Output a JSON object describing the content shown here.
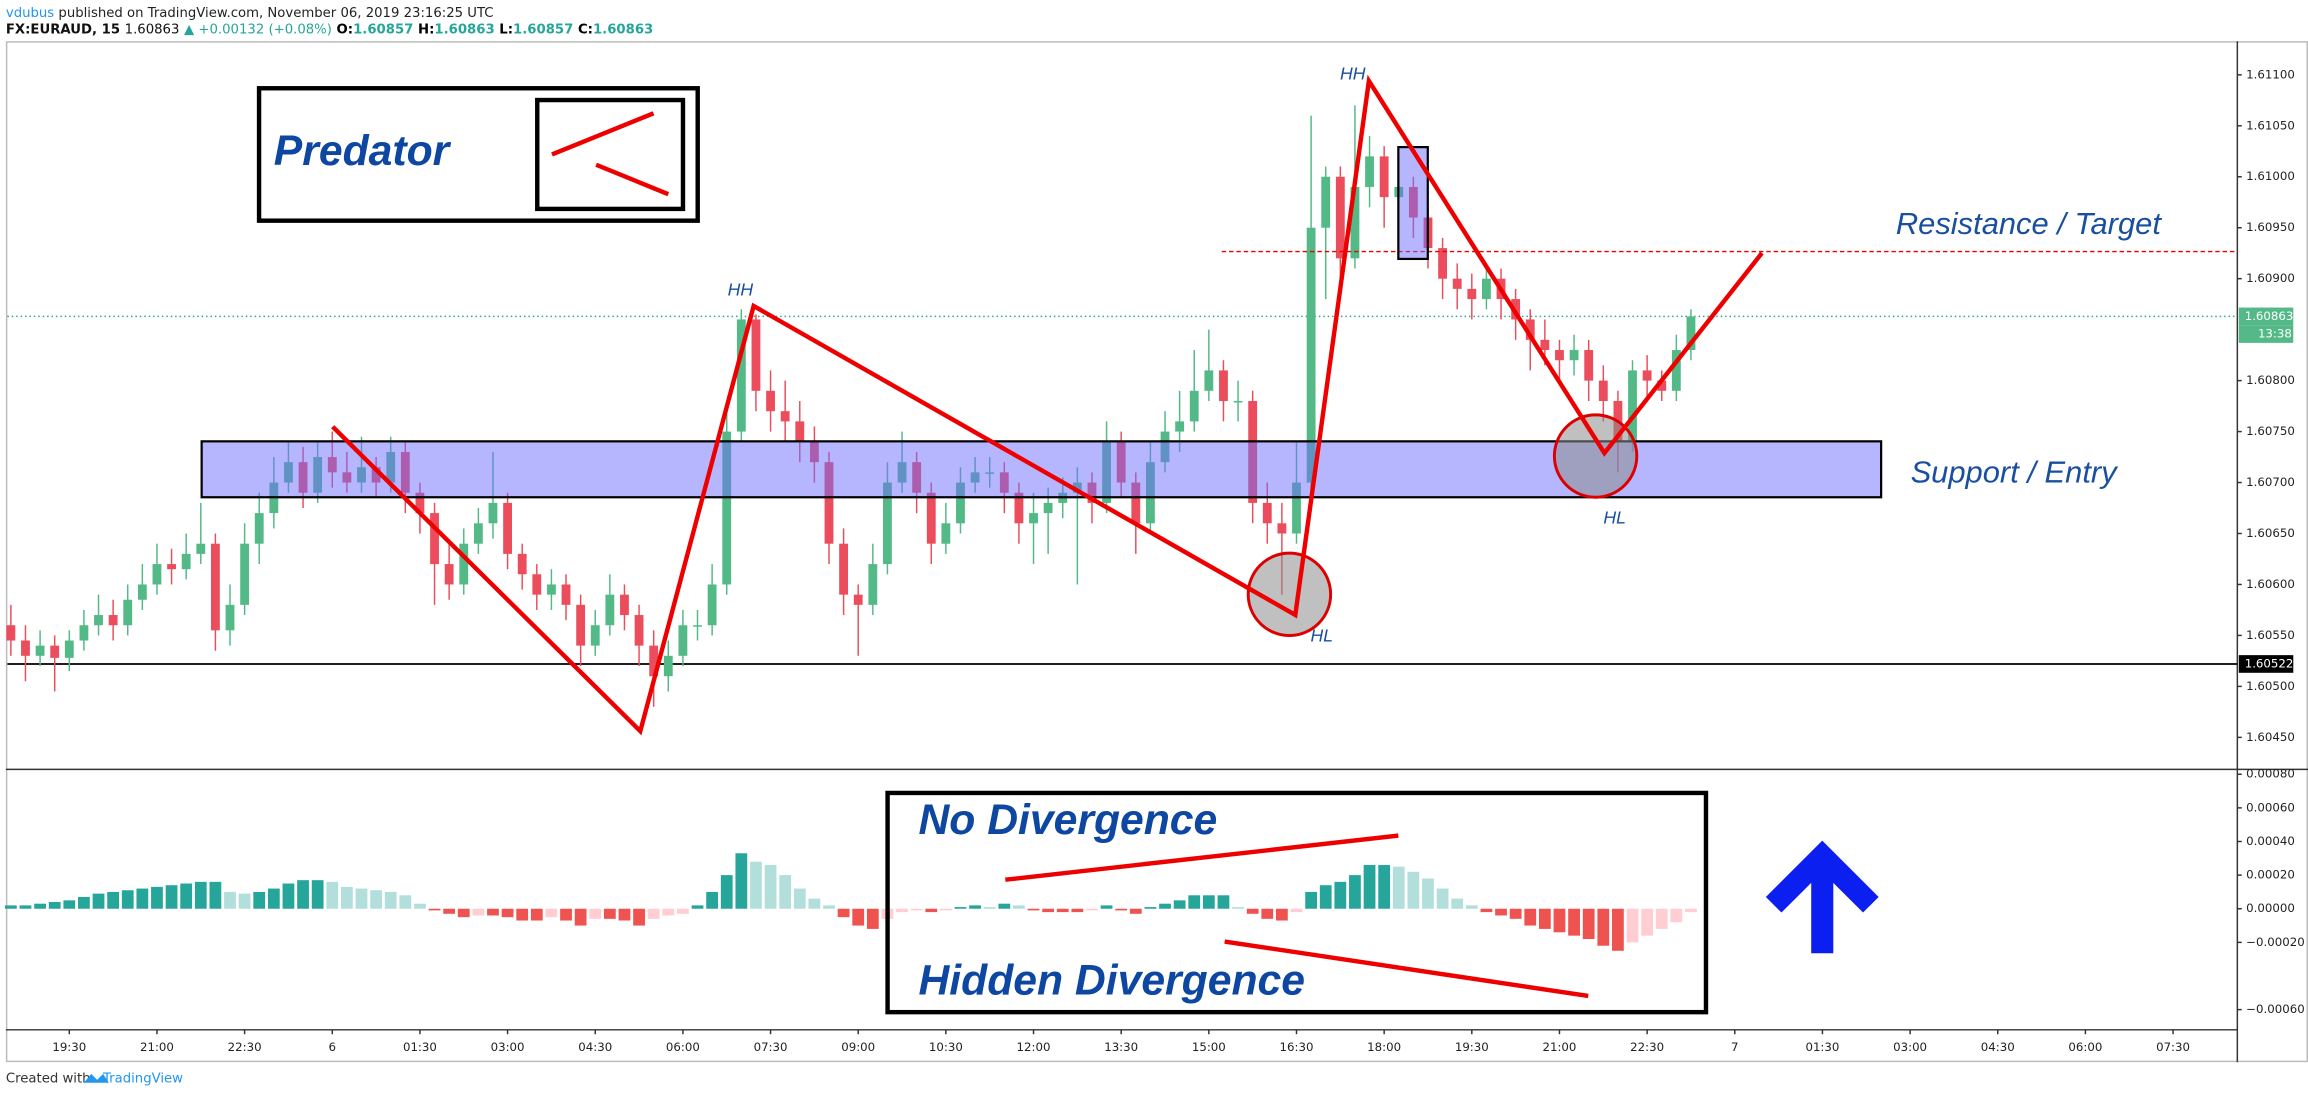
{
  "header": {
    "author": "vdubus",
    "published": "published on TradingView.com, November 06, 2019 23:16:25 UTC",
    "symbol": "FX:EURAUD, 15",
    "price": "1.60863",
    "change": "▲ +0.00132 (+0.08%)",
    "ohlc": [
      {
        "label": "O:",
        "value": "1.60857"
      },
      {
        "label": "H:",
        "value": "1.60863"
      },
      {
        "label": "L:",
        "value": "1.60857"
      },
      {
        "label": "C:",
        "value": "1.60863"
      }
    ]
  },
  "footer": {
    "created": "Created with",
    "brand": "TradingView"
  },
  "chart_data": [
    {
      "type": "candlestick",
      "up_color": "#53b987",
      "down_color": "#eb4d5c",
      "xlim": [
        -0.24,
        152.4
      ],
      "ylim": [
        1.6042,
        1.61133
      ],
      "xticks": [
        {
          "value": 4,
          "label": "19:30"
        },
        {
          "value": 10,
          "label": "21:00"
        },
        {
          "value": 16,
          "label": "22:30"
        },
        {
          "value": 22,
          "label": "6"
        },
        {
          "value": 28,
          "label": "01:30"
        },
        {
          "value": 34,
          "label": "03:00"
        },
        {
          "value": 40,
          "label": "04:30"
        },
        {
          "value": 46,
          "label": "06:00"
        },
        {
          "value": 52,
          "label": "07:30"
        },
        {
          "value": 58,
          "label": "09:00"
        },
        {
          "value": 64,
          "label": "10:30"
        },
        {
          "value": 70,
          "label": "12:00"
        },
        {
          "value": 76,
          "label": "13:30"
        },
        {
          "value": 82,
          "label": "15:00"
        },
        {
          "value": 88,
          "label": "16:30"
        },
        {
          "value": 94,
          "label": "18:00"
        },
        {
          "value": 100,
          "label": "19:30"
        },
        {
          "value": 106,
          "label": "21:00"
        },
        {
          "value": 112,
          "label": "22:30"
        },
        {
          "value": 118,
          "label": "7"
        },
        {
          "value": 124,
          "label": "01:30"
        },
        {
          "value": 130,
          "label": "03:00"
        },
        {
          "value": 136,
          "label": "04:30"
        },
        {
          "value": 142,
          "label": "06:00"
        },
        {
          "value": 148,
          "label": "07:30"
        }
      ],
      "yticks": [
        {
          "value": 1.611,
          "label": "1.61100"
        },
        {
          "value": 1.6105,
          "label": "1.61050"
        },
        {
          "value": 1.61,
          "label": "1.61000"
        },
        {
          "value": 1.6095,
          "label": "1.60950"
        },
        {
          "value": 1.609,
          "label": "1.60900"
        },
        {
          "value": 1.608,
          "label": "1.60800"
        },
        {
          "value": 1.6075,
          "label": "1.60750"
        },
        {
          "value": 1.607,
          "label": "1.60700"
        },
        {
          "value": 1.6065,
          "label": "1.60650"
        },
        {
          "value": 1.606,
          "label": "1.60600"
        },
        {
          "value": 1.6055,
          "label": "1.60550"
        },
        {
          "value": 1.605,
          "label": "1.60500"
        },
        {
          "value": 1.6045,
          "label": "1.60450"
        }
      ],
      "grid": false,
      "last_price": 1.60863,
      "countdown": "13:38",
      "level": 1.60522,
      "annotations": {
        "predator": "Predator",
        "hh": [
          "HH",
          "HH"
        ],
        "hl": [
          "HL",
          "HL"
        ],
        "resistance": "Resistance / Target",
        "support": "Support / Entry"
      },
      "candles": [
        [
          1.6056,
          1.6058,
          1.6053,
          1.60545
        ],
        [
          1.60545,
          1.6056,
          1.60505,
          1.6053
        ],
        [
          1.6053,
          1.60555,
          1.6052,
          1.6054
        ],
        [
          1.6054,
          1.6055,
          1.60495,
          1.60528
        ],
        [
          1.60528,
          1.60555,
          1.60515,
          1.60545
        ],
        [
          1.60545,
          1.60575,
          1.60535,
          1.6056
        ],
        [
          1.6056,
          1.6059,
          1.6055,
          1.6057
        ],
        [
          1.6057,
          1.60585,
          1.60545,
          1.6056
        ],
        [
          1.6056,
          1.606,
          1.6055,
          1.60585
        ],
        [
          1.60585,
          1.6062,
          1.60575,
          1.606
        ],
        [
          1.606,
          1.6064,
          1.6059,
          1.6062
        ],
        [
          1.6062,
          1.60635,
          1.606,
          1.60615
        ],
        [
          1.60615,
          1.6065,
          1.60605,
          1.6063
        ],
        [
          1.6063,
          1.6068,
          1.6062,
          1.6064
        ],
        [
          1.6064,
          1.6065,
          1.60535,
          1.60555
        ],
        [
          1.60555,
          1.606,
          1.6054,
          1.6058
        ],
        [
          1.6058,
          1.6066,
          1.6057,
          1.6064
        ],
        [
          1.6064,
          1.6069,
          1.6062,
          1.6067
        ],
        [
          1.6067,
          1.60725,
          1.60655,
          1.607
        ],
        [
          1.607,
          1.6074,
          1.6069,
          1.6072
        ],
        [
          1.6072,
          1.60735,
          1.60675,
          1.6069
        ],
        [
          1.6069,
          1.6074,
          1.6068,
          1.60725
        ],
        [
          1.60725,
          1.6075,
          1.60695,
          1.6071
        ],
        [
          1.6071,
          1.6073,
          1.6069,
          1.607
        ],
        [
          1.607,
          1.60745,
          1.6069,
          1.60715
        ],
        [
          1.60715,
          1.60725,
          1.60685,
          1.607
        ],
        [
          1.607,
          1.60745,
          1.6069,
          1.6073
        ],
        [
          1.6073,
          1.6074,
          1.6067,
          1.6069
        ],
        [
          1.6069,
          1.607,
          1.6065,
          1.6067
        ],
        [
          1.6067,
          1.6068,
          1.6058,
          1.6062
        ],
        [
          1.6062,
          1.6064,
          1.60585,
          1.606
        ],
        [
          1.606,
          1.60655,
          1.6059,
          1.6064
        ],
        [
          1.6064,
          1.60675,
          1.6063,
          1.6066
        ],
        [
          1.6066,
          1.6073,
          1.60645,
          1.6068
        ],
        [
          1.6068,
          1.6069,
          1.60615,
          1.6063
        ],
        [
          1.6063,
          1.6064,
          1.60595,
          1.6061
        ],
        [
          1.6061,
          1.6062,
          1.60575,
          1.6059
        ],
        [
          1.6059,
          1.60615,
          1.60575,
          1.606
        ],
        [
          1.606,
          1.6061,
          1.60565,
          1.6058
        ],
        [
          1.6058,
          1.6059,
          1.6052,
          1.6054
        ],
        [
          1.6054,
          1.60575,
          1.6053,
          1.6056
        ],
        [
          1.6056,
          1.6061,
          1.6055,
          1.6059
        ],
        [
          1.6059,
          1.606,
          1.60555,
          1.6057
        ],
        [
          1.6057,
          1.6058,
          1.6052,
          1.6054
        ],
        [
          1.6054,
          1.60555,
          1.6048,
          1.6051
        ],
        [
          1.6051,
          1.60545,
          1.60495,
          1.6053
        ],
        [
          1.6053,
          1.60575,
          1.6052,
          1.6056
        ],
        [
          1.6056,
          1.60575,
          1.60545,
          1.6056
        ],
        [
          1.6056,
          1.6062,
          1.6055,
          1.606
        ],
        [
          1.606,
          1.6077,
          1.6059,
          1.6075
        ],
        [
          1.6075,
          1.6087,
          1.6074,
          1.6086
        ],
        [
          1.6086,
          1.60865,
          1.6077,
          1.6079
        ],
        [
          1.6079,
          1.6081,
          1.6075,
          1.6077
        ],
        [
          1.6077,
          1.608,
          1.6074,
          1.6076
        ],
        [
          1.6076,
          1.6078,
          1.6072,
          1.6074
        ],
        [
          1.6074,
          1.60755,
          1.607,
          1.6072
        ],
        [
          1.6072,
          1.6073,
          1.6062,
          1.6064
        ],
        [
          1.6064,
          1.60655,
          1.6057,
          1.6059
        ],
        [
          1.6059,
          1.606,
          1.6053,
          1.6058
        ],
        [
          1.6058,
          1.6064,
          1.6057,
          1.6062
        ],
        [
          1.6062,
          1.6072,
          1.6061,
          1.607
        ],
        [
          1.607,
          1.6075,
          1.6069,
          1.6072
        ],
        [
          1.6072,
          1.6073,
          1.6067,
          1.6069
        ],
        [
          1.6069,
          1.607,
          1.6062,
          1.6064
        ],
        [
          1.6064,
          1.6068,
          1.6063,
          1.6066
        ],
        [
          1.6066,
          1.60715,
          1.6065,
          1.607
        ],
        [
          1.607,
          1.60725,
          1.6069,
          1.6071
        ],
        [
          1.6071,
          1.60725,
          1.60695,
          1.6071
        ],
        [
          1.6071,
          1.6072,
          1.6067,
          1.6069
        ],
        [
          1.6069,
          1.607,
          1.6064,
          1.6066
        ],
        [
          1.6066,
          1.6069,
          1.6062,
          1.6067
        ],
        [
          1.6067,
          1.60695,
          1.6063,
          1.6068
        ],
        [
          1.6068,
          1.60705,
          1.60665,
          1.6069
        ],
        [
          1.6069,
          1.60715,
          1.606,
          1.607
        ],
        [
          1.607,
          1.6071,
          1.6066,
          1.6068
        ],
        [
          1.6068,
          1.6076,
          1.6067,
          1.6074
        ],
        [
          1.6074,
          1.6075,
          1.60685,
          1.607
        ],
        [
          1.607,
          1.6071,
          1.6063,
          1.6066
        ],
        [
          1.6066,
          1.6074,
          1.6065,
          1.6072
        ],
        [
          1.6072,
          1.6077,
          1.6071,
          1.6075
        ],
        [
          1.6075,
          1.6079,
          1.6073,
          1.6076
        ],
        [
          1.6076,
          1.6083,
          1.6075,
          1.6079
        ],
        [
          1.6079,
          1.6085,
          1.6078,
          1.6081
        ],
        [
          1.6081,
          1.6082,
          1.6076,
          1.6078
        ],
        [
          1.6078,
          1.608,
          1.6076,
          1.6078
        ],
        [
          1.6078,
          1.6079,
          1.6066,
          1.6068
        ],
        [
          1.6068,
          1.607,
          1.6064,
          1.6066
        ],
        [
          1.6066,
          1.6068,
          1.6059,
          1.6065
        ],
        [
          1.6065,
          1.6074,
          1.6064,
          1.607
        ],
        [
          1.607,
          1.6106,
          1.6069,
          1.6095
        ],
        [
          1.6095,
          1.6101,
          1.6088,
          1.61
        ],
        [
          1.61,
          1.6101,
          1.609,
          1.6092
        ],
        [
          1.6092,
          1.6107,
          1.6091,
          1.6099
        ],
        [
          1.6099,
          1.6104,
          1.6097,
          1.6102
        ],
        [
          1.6102,
          1.6103,
          1.6095,
          1.6098
        ],
        [
          1.6098,
          1.6103,
          1.6097,
          1.6099
        ],
        [
          1.6099,
          1.61,
          1.6094,
          1.6096
        ],
        [
          1.6096,
          1.6097,
          1.6091,
          1.6093
        ],
        [
          1.6093,
          1.6094,
          1.6088,
          1.609
        ],
        [
          1.609,
          1.60915,
          1.6087,
          1.6089
        ],
        [
          1.6089,
          1.60905,
          1.6086,
          1.6088
        ],
        [
          1.6088,
          1.60915,
          1.6087,
          1.609
        ],
        [
          1.609,
          1.6091,
          1.6086,
          1.6088
        ],
        [
          1.6088,
          1.6089,
          1.6084,
          1.6086
        ],
        [
          1.6086,
          1.6087,
          1.6081,
          1.6084
        ],
        [
          1.6084,
          1.6086,
          1.60815,
          1.6083
        ],
        [
          1.6083,
          1.6084,
          1.608,
          1.6082
        ],
        [
          1.6082,
          1.60845,
          1.60805,
          1.6083
        ],
        [
          1.6083,
          1.6084,
          1.6078,
          1.608
        ],
        [
          1.608,
          1.60815,
          1.6076,
          1.6078
        ],
        [
          1.6078,
          1.6079,
          1.6071,
          1.6074
        ],
        [
          1.6074,
          1.6082,
          1.6073,
          1.6081
        ],
        [
          1.6081,
          1.60825,
          1.60785,
          1.608
        ],
        [
          1.608,
          1.6081,
          1.6078,
          1.6079
        ],
        [
          1.6079,
          1.60845,
          1.6078,
          1.6083
        ],
        [
          1.6083,
          1.6087,
          1.6082,
          1.60863
        ]
      ]
    },
    {
      "type": "bar",
      "ylim": [
        -0.00072,
        0.00082
      ],
      "yticks": [
        {
          "value": 0.0008,
          "label": "0.00080"
        },
        {
          "value": 0.0006,
          "label": "0.00060"
        },
        {
          "value": 0.0004,
          "label": "0.00040"
        },
        {
          "value": 0.0002,
          "label": "0.00020"
        },
        {
          "value": 0,
          "label": "0.00000"
        },
        {
          "value": -0.0002,
          "label": "−0.00020"
        },
        {
          "value": -0.0006,
          "label": "−0.00060"
        }
      ],
      "colors": {
        "positive_rising": "#26a69a",
        "positive_falling": "#b2dfdb",
        "negative_falling": "#ef5350",
        "negative_rising": "#ffcdd2"
      },
      "annotations": {
        "no_div": "No Divergence",
        "hidden_div": "Hidden Divergence"
      },
      "values": [
        2e-05,
        2e-05,
        3e-05,
        4e-05,
        5e-05,
        7e-05,
        9e-05,
        0.0001,
        0.00011,
        0.00012,
        0.00013,
        0.00014,
        0.00015,
        0.00016,
        0.00016,
        0.0001,
        9e-05,
        0.0001,
        0.00012,
        0.00015,
        0.00017,
        0.00017,
        0.00016,
        0.00013,
        0.00012,
        0.00011,
        0.0001,
        8e-05,
        3e-05,
        -1e-05,
        -3e-05,
        -5e-05,
        -4e-05,
        -4e-05,
        -5e-05,
        -7e-05,
        -7e-05,
        -5e-05,
        -7e-05,
        -0.0001,
        -6e-05,
        -6e-05,
        -7e-05,
        -0.0001,
        -6e-05,
        -4e-05,
        -3e-05,
        2e-05,
        0.0001,
        0.0002,
        0.00033,
        0.00028,
        0.00026,
        0.0002,
        0.00012,
        6e-05,
        2e-05,
        -5e-05,
        -0.0001,
        -0.00012,
        -6e-05,
        -2e-05,
        -1e-05,
        -2e-05,
        -1e-05,
        1e-05,
        2e-05,
        1e-05,
        3e-05,
        2e-05,
        -1e-05,
        -2e-05,
        -2e-05,
        -2e-05,
        -1e-05,
        2e-05,
        -1e-05,
        -3e-05,
        1e-05,
        3e-05,
        5e-05,
        8e-05,
        8e-05,
        8e-05,
        1e-05,
        -3e-05,
        -6e-05,
        -7e-05,
        -2e-05,
        0.0001,
        0.00014,
        0.00016,
        0.0002,
        0.00026,
        0.00026,
        0.00025,
        0.00022,
        0.00018,
        0.00012,
        6e-05,
        2e-05,
        -2e-05,
        -4e-05,
        -6e-05,
        -0.0001,
        -0.00012,
        -0.00014,
        -0.00016,
        -0.00018,
        -0.00022,
        -0.00025,
        -0.0002,
        -0.00016,
        -0.00012,
        -8e-05,
        -2e-05
      ]
    }
  ]
}
